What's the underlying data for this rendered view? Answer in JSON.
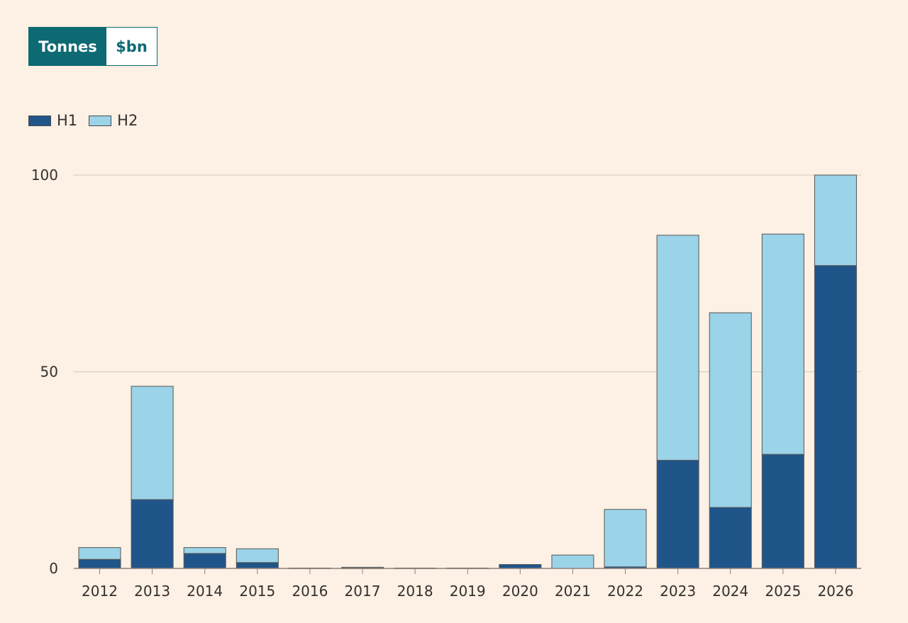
{
  "toggle": {
    "options": [
      "Tonnes",
      "$bn"
    ],
    "selected": "Tonnes"
  },
  "colors": {
    "h1": "#20558a",
    "h2": "#9bd3e8",
    "accent": "#0d6a73",
    "background": "#fdf0e4",
    "grid": "#d8cfc6"
  },
  "chart_data": {
    "type": "bar",
    "stacked": true,
    "categories": [
      "2012",
      "2013",
      "2014",
      "2015",
      "2016",
      "2017",
      "2018",
      "2019",
      "2020",
      "2021",
      "2022",
      "2023",
      "2024",
      "2025",
      "2026"
    ],
    "series": [
      {
        "name": "H1",
        "values": [
          2.3,
          17.5,
          3.8,
          1.5,
          0,
          0.1,
          0,
          0,
          1.0,
          0,
          0.4,
          27.5,
          15.5,
          29.0,
          77.0
        ]
      },
      {
        "name": "H2",
        "values": [
          3.0,
          28.8,
          1.5,
          3.5,
          0.1,
          0.2,
          0.1,
          0.1,
          0,
          3.4,
          14.6,
          57.2,
          49.5,
          56.0,
          23.0
        ]
      }
    ],
    "ylim": [
      0,
      100
    ],
    "yticks": [
      0,
      50,
      100
    ],
    "grid": true,
    "legend_position": "top-left"
  }
}
